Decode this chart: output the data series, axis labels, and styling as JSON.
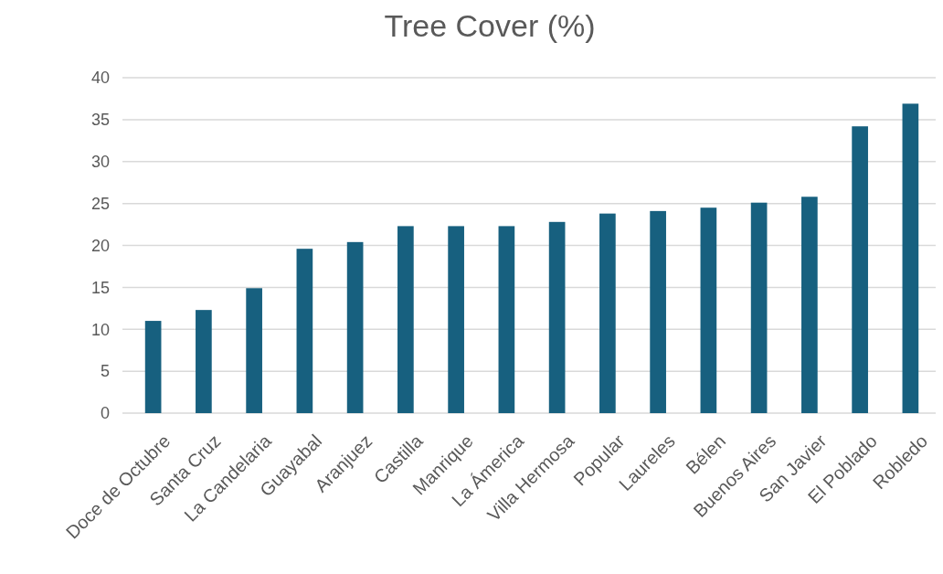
{
  "chart_data": {
    "type": "bar",
    "title": "Tree Cover (%)",
    "categories": [
      "Doce de Octubre",
      "Santa Cruz",
      "La Candelaria",
      "Guayabal",
      "Aranjuez",
      "Castilla",
      "Manrique",
      "La Ámerica",
      "Villa Hermosa",
      "Popular",
      "Laureles",
      "Bélen",
      "Buenos Aires",
      "San Javier",
      "El Poblado",
      "Robledo"
    ],
    "values": [
      11.0,
      12.3,
      14.9,
      19.6,
      20.4,
      22.3,
      22.3,
      22.3,
      22.8,
      23.8,
      24.1,
      24.5,
      25.1,
      25.8,
      34.2,
      36.9
    ],
    "color": "#17607f",
    "ylim": [
      0,
      40
    ],
    "yticks": [
      0,
      5,
      10,
      15,
      20,
      25,
      30,
      35,
      40
    ],
    "grid": "y"
  }
}
